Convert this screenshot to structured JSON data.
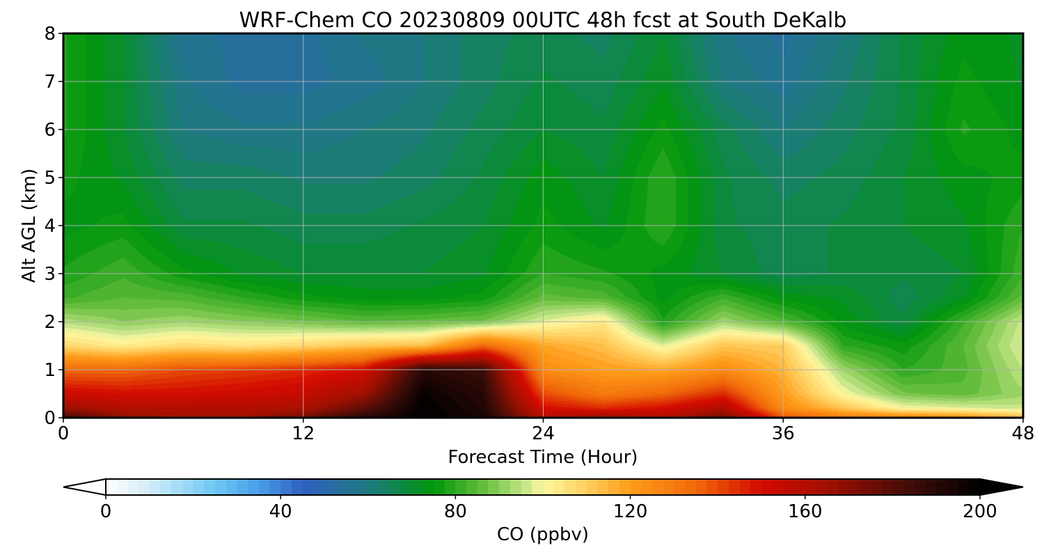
{
  "chart_data": {
    "type": "heatmap",
    "subtype": "filled-contour time-height cross-section",
    "title": "WRF-Chem CO  20230809 00UTC 48h fcst at South DeKalb",
    "xlabel": "Forecast Time (Hour)",
    "ylabel": "Alt AGL (km)",
    "xlim": [
      0,
      48
    ],
    "ylim": [
      0,
      8
    ],
    "xticks": [
      0,
      12,
      24,
      36,
      48
    ],
    "yticks": [
      0,
      1,
      2,
      3,
      4,
      5,
      6,
      7,
      8
    ],
    "grid": true,
    "x": [
      0,
      3,
      6,
      9,
      12,
      15,
      18,
      21,
      24,
      27,
      30,
      33,
      36,
      39,
      42,
      45,
      48
    ],
    "y": [
      0,
      0.2,
      0.5,
      1,
      1.5,
      2,
      2.5,
      3,
      4,
      5,
      6,
      7,
      8
    ],
    "z": [
      [
        185,
        168,
        165,
        165,
        175,
        190,
        200,
        195,
        160,
        168,
        162,
        175,
        140,
        130,
        128,
        124,
        115
      ],
      [
        165,
        160,
        160,
        160,
        162,
        178,
        200,
        192,
        150,
        145,
        150,
        160,
        125,
        112,
        100,
        98,
        96
      ],
      [
        152,
        150,
        150,
        152,
        154,
        165,
        198,
        190,
        140,
        130,
        135,
        145,
        120,
        100,
        88,
        86,
        92
      ],
      [
        135,
        135,
        140,
        142,
        145,
        150,
        190,
        185,
        125,
        120,
        118,
        125,
        115,
        92,
        80,
        84,
        95
      ],
      [
        108,
        103,
        107,
        105,
        108,
        112,
        113,
        135,
        118,
        113,
        98,
        112,
        110,
        80,
        76,
        85,
        98
      ],
      [
        94,
        90,
        92,
        90,
        88,
        85,
        86,
        88,
        98,
        104,
        78,
        92,
        84,
        74,
        68,
        82,
        96
      ],
      [
        82,
        85,
        84,
        80,
        76,
        74,
        74,
        76,
        86,
        84,
        74,
        82,
        74,
        72,
        66,
        72,
        86
      ],
      [
        78,
        82,
        76,
        72,
        70,
        70,
        70,
        72,
        80,
        78,
        74,
        70,
        66,
        68,
        68,
        70,
        82
      ],
      [
        74,
        76,
        68,
        68,
        66,
        66,
        68,
        70,
        76,
        72,
        80,
        68,
        66,
        68,
        70,
        72,
        80
      ],
      [
        76,
        72,
        64,
        64,
        62,
        62,
        64,
        68,
        74,
        70,
        80,
        68,
        64,
        66,
        70,
        74,
        76
      ],
      [
        78,
        70,
        60,
        58,
        58,
        60,
        62,
        66,
        70,
        68,
        76,
        66,
        60,
        64,
        68,
        78,
        74
      ],
      [
        78,
        70,
        58,
        54,
        54,
        56,
        60,
        64,
        68,
        66,
        72,
        60,
        56,
        62,
        68,
        76,
        72
      ],
      [
        78,
        70,
        56,
        54,
        54,
        58,
        60,
        64,
        66,
        64,
        70,
        58,
        54,
        60,
        68,
        74,
        72
      ]
    ],
    "colorbar": {
      "label": "CO  (ppbv)",
      "min": 0,
      "max": 200,
      "ticks": [
        0,
        40,
        80,
        120,
        160,
        200
      ],
      "extend": "both",
      "color_stops": [
        [
          0,
          "#ffffff"
        ],
        [
          10,
          "#d2ecfa"
        ],
        [
          25,
          "#6ec8f5"
        ],
        [
          35,
          "#4a9ee8"
        ],
        [
          45,
          "#3060c0"
        ],
        [
          60,
          "#1e7a80"
        ],
        [
          75,
          "#00960a"
        ],
        [
          87,
          "#6cc040"
        ],
        [
          96,
          "#c8e68c"
        ],
        [
          100,
          "#fff8a0"
        ],
        [
          110,
          "#ffcf60"
        ],
        [
          120,
          "#ff9c1a"
        ],
        [
          135,
          "#f06a0a"
        ],
        [
          150,
          "#d20a00"
        ],
        [
          165,
          "#a01000"
        ],
        [
          185,
          "#3c0c08"
        ],
        [
          200,
          "#000000"
        ]
      ]
    }
  }
}
